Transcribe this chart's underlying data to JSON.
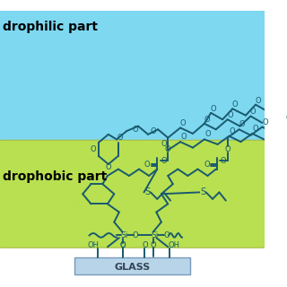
{
  "bg_color": "#ffffff",
  "hydrophilic_color": "#7dd8f0",
  "hydrophobic_color": "#b8e050",
  "glass_color": "#b8d4e8",
  "line_color": "#1a5a6e",
  "text_color": "#000000",
  "hydrophilic_label": "drophilic part",
  "hydrophobic_label": "drophobic part",
  "glass_label": "GLASS",
  "figsize": [
    3.2,
    3.2
  ],
  "dpi": 100
}
